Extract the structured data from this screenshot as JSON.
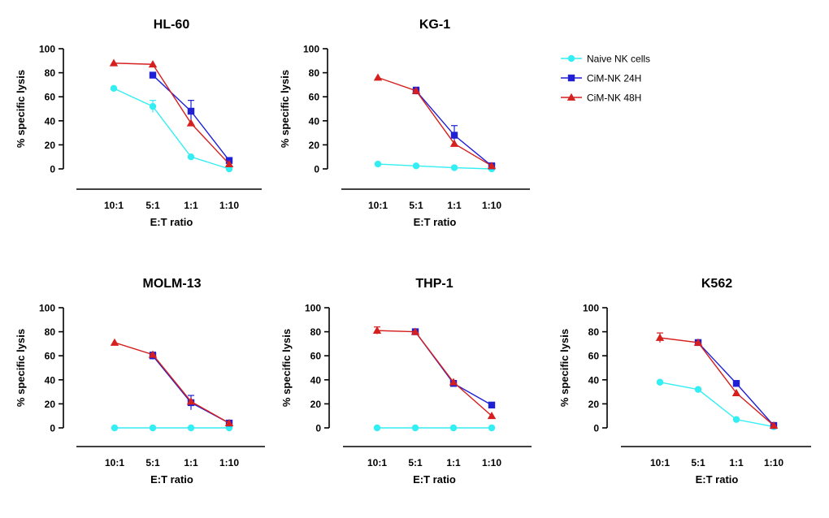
{
  "colors": {
    "naive": "#33eef2",
    "h24": "#1f1fd6",
    "h48": "#d61f1f",
    "axis": "#000000"
  },
  "legend": [
    {
      "key": "naive",
      "label": "Naive NK cells",
      "marker": "circle"
    },
    {
      "key": "h24",
      "label": "CiM-NK 24H",
      "marker": "square"
    },
    {
      "key": "h48",
      "label": "CiM-NK 48H",
      "marker": "triangle"
    }
  ],
  "chart_data": [
    {
      "type": "line",
      "title": "HL-60",
      "xlabel": "E:T ratio",
      "ylabel": "% specific lysis",
      "categories": [
        "10:1",
        "5:1",
        "1:1",
        "1:10"
      ],
      "ylim": [
        0,
        100
      ],
      "yticks": [
        0,
        20,
        40,
        60,
        80,
        100
      ],
      "series": [
        {
          "name": "Naive NK cells",
          "key": "naive",
          "values": [
            67,
            52,
            10,
            0
          ],
          "errors": [
            0,
            5,
            0,
            0
          ]
        },
        {
          "name": "CiM-NK 24H",
          "key": "h24",
          "values": [
            null,
            78,
            48,
            7
          ],
          "errors": [
            0,
            0,
            9,
            0
          ]
        },
        {
          "name": "CiM-NK 48H",
          "key": "h48",
          "values": [
            88,
            87,
            38,
            4
          ],
          "errors": [
            0,
            0,
            0,
            0
          ]
        }
      ]
    },
    {
      "type": "line",
      "title": "KG-1",
      "xlabel": "E:T ratio",
      "ylabel": "% specific lysis",
      "categories": [
        "10:1",
        "5:1",
        "1:1",
        "1:10"
      ],
      "ylim": [
        0,
        100
      ],
      "yticks": [
        0,
        20,
        40,
        60,
        80,
        100
      ],
      "series": [
        {
          "name": "Naive NK cells",
          "key": "naive",
          "values": [
            4,
            2.5,
            1,
            0
          ],
          "errors": [
            0,
            0,
            0,
            0
          ]
        },
        {
          "name": "CiM-NK 24H",
          "key": "h24",
          "values": [
            null,
            65,
            28,
            2.5
          ],
          "errors": [
            0,
            3,
            8,
            0
          ]
        },
        {
          "name": "CiM-NK 48H",
          "key": "h48",
          "values": [
            76,
            65,
            21,
            2.5
          ],
          "errors": [
            0,
            0,
            0,
            0
          ]
        }
      ]
    },
    {
      "type": "line",
      "title": "MOLM-13",
      "xlabel": "E:T ratio",
      "ylabel": "% specific lysis",
      "categories": [
        "10:1",
        "5:1",
        "1:1",
        "1:10"
      ],
      "ylim": [
        0,
        100
      ],
      "yticks": [
        0,
        20,
        40,
        60,
        80,
        100
      ],
      "series": [
        {
          "name": "Naive NK cells",
          "key": "naive",
          "values": [
            0,
            0,
            0,
            0
          ],
          "errors": [
            0,
            0,
            0,
            0
          ]
        },
        {
          "name": "CiM-NK 24H",
          "key": "h24",
          "values": [
            null,
            60,
            21,
            4
          ],
          "errors": [
            0,
            3,
            6,
            0
          ]
        },
        {
          "name": "CiM-NK 48H",
          "key": "h48",
          "values": [
            71,
            61,
            22,
            4
          ],
          "errors": [
            0,
            0,
            0,
            0
          ]
        }
      ]
    },
    {
      "type": "line",
      "title": "THP-1",
      "xlabel": "E:T ratio",
      "ylabel": "% specific lysis",
      "categories": [
        "10:1",
        "5:1",
        "1:1",
        "1:10"
      ],
      "ylim": [
        0,
        100
      ],
      "yticks": [
        0,
        20,
        40,
        60,
        80,
        100
      ],
      "series": [
        {
          "name": "Naive NK cells",
          "key": "naive",
          "values": [
            0,
            0,
            0,
            0
          ],
          "errors": [
            0,
            0,
            0,
            0
          ]
        },
        {
          "name": "CiM-NK 24H",
          "key": "h24",
          "values": [
            null,
            80,
            37,
            19
          ],
          "errors": [
            0,
            0,
            2,
            0
          ]
        },
        {
          "name": "CiM-NK 48H",
          "key": "h48",
          "values": [
            81,
            80,
            38,
            10
          ],
          "errors": [
            3,
            0,
            0,
            0
          ]
        }
      ]
    },
    {
      "type": "line",
      "title": "K562",
      "xlabel": "E:T ratio",
      "ylabel": "% specific lysis",
      "categories": [
        "10:1",
        "5:1",
        "1:1",
        "1:10"
      ],
      "ylim": [
        0,
        100
      ],
      "yticks": [
        0,
        20,
        40,
        60,
        80,
        100
      ],
      "series": [
        {
          "name": "Naive NK cells",
          "key": "naive",
          "values": [
            38,
            32,
            7,
            1
          ],
          "errors": [
            0,
            0,
            0,
            0
          ]
        },
        {
          "name": "CiM-NK 24H",
          "key": "h24",
          "values": [
            null,
            71,
            37,
            2
          ],
          "errors": [
            0,
            2,
            0,
            0
          ]
        },
        {
          "name": "CiM-NK 48H",
          "key": "h48",
          "values": [
            75,
            71,
            29,
            2
          ],
          "errors": [
            4,
            0,
            0,
            0
          ]
        }
      ]
    }
  ]
}
